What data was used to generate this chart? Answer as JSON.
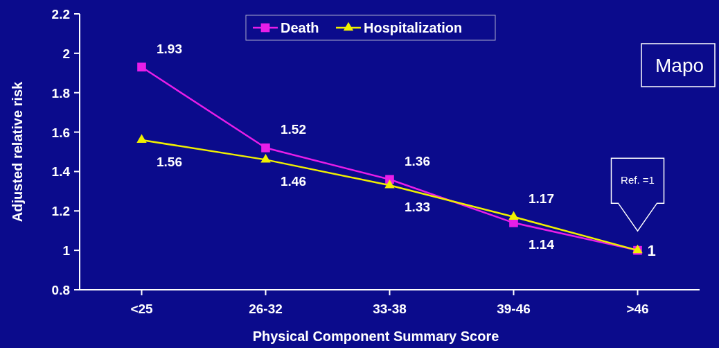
{
  "chart_data": {
    "type": "line",
    "xlabel": "Physical Component Summary Score",
    "ylabel": "Adjusted relative risk",
    "categories": [
      "<25",
      "26-32",
      "33-38",
      "39-46",
      ">46"
    ],
    "series": [
      {
        "name": "Death",
        "color": "#e81ee8",
        "marker": "square",
        "values": [
          1.93,
          1.52,
          1.36,
          1.14,
          1
        ],
        "value_labels": [
          "1.93",
          "1.52",
          "1.36",
          "1.14",
          "1"
        ]
      },
      {
        "name": "Hospitalization",
        "color": "#f0f000",
        "marker": "triangle",
        "values": [
          1.56,
          1.46,
          1.33,
          1.17,
          1
        ],
        "value_labels": [
          "1.56",
          "1.46",
          "1.33",
          "1.17",
          null
        ]
      }
    ],
    "ylim": [
      0.8,
      2.2
    ],
    "yticks": [
      0.8,
      1,
      1.2,
      1.4,
      1.6,
      1.8,
      2,
      2.2
    ],
    "grid": false,
    "legend": "top",
    "annotations": [
      "Ref. =1",
      "Mapo"
    ]
  }
}
